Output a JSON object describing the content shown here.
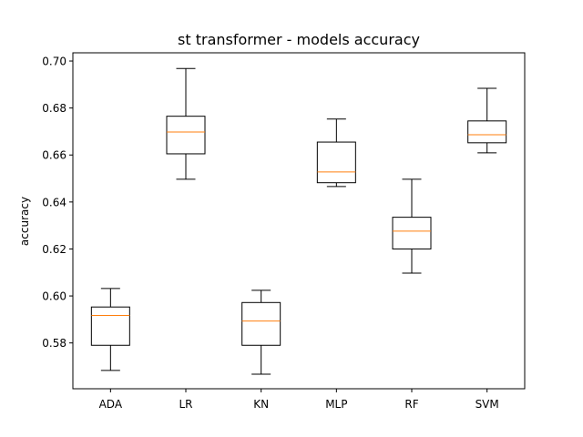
{
  "chart_data": {
    "type": "box",
    "title": "st transformer - models accuracy",
    "xlabel": "",
    "ylabel": "accuracy",
    "ylim": [
      0.5605,
      0.7035
    ],
    "yticks": [
      "0.58",
      "0.60",
      "0.62",
      "0.64",
      "0.66",
      "0.68",
      "0.70"
    ],
    "grid": false,
    "colors": {
      "box": "#000000",
      "median": "#ff7f0e"
    },
    "categories": [
      "ADA",
      "LR",
      "KN",
      "MLP",
      "RF",
      "SVM"
    ],
    "boxes": [
      {
        "category": "ADA",
        "whislo": 0.5683,
        "q1": 0.579,
        "med": 0.5917,
        "q3": 0.5953,
        "whishi": 0.6032
      },
      {
        "category": "LR",
        "whislo": 0.6497,
        "q1": 0.6605,
        "med": 0.6698,
        "q3": 0.6765,
        "whishi": 0.6968
      },
      {
        "category": "KN",
        "whislo": 0.5667,
        "q1": 0.579,
        "med": 0.5893,
        "q3": 0.5972,
        "whishi": 0.6024
      },
      {
        "category": "MLP",
        "whislo": 0.6466,
        "q1": 0.6482,
        "med": 0.6528,
        "q3": 0.6655,
        "whishi": 0.6753
      },
      {
        "category": "RF",
        "whislo": 0.6097,
        "q1": 0.62,
        "med": 0.6276,
        "q3": 0.6335,
        "whishi": 0.6497
      },
      {
        "category": "SVM",
        "whislo": 0.6609,
        "q1": 0.6652,
        "med": 0.6686,
        "q3": 0.6745,
        "whishi": 0.6884
      }
    ]
  }
}
